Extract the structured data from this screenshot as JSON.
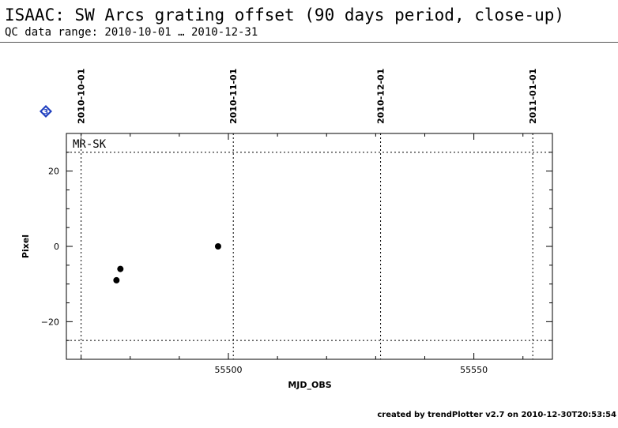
{
  "header": {
    "title": "ISAAC: SW Arcs grating offset (90 days period, close-up)",
    "subtitle": "QC data range: 2010-10-01 … 2010-12-31"
  },
  "badge": {
    "label": "3",
    "color": "#1f3fbf",
    "icon": "diamond-icon"
  },
  "footer": {
    "text": "created by trendPlotter v2.7 on 2010-12-30T20:53:54"
  },
  "chart_data": {
    "type": "scatter",
    "panel_label": "MR-SK",
    "xlabel": "MJD_OBS",
    "ylabel": "Pixel",
    "xlim": [
      55467,
      55566
    ],
    "ylim": [
      -30,
      30
    ],
    "x_ticks": [
      55500,
      55550
    ],
    "y_ticks": [
      -20,
      0,
      20
    ],
    "top_date_axis": [
      {
        "label": "2010-10-01",
        "x": 55470
      },
      {
        "label": "2010-11-01",
        "x": 55501
      },
      {
        "label": "2010-12-01",
        "x": 55531
      },
      {
        "label": "2011-01-01",
        "x": 55562
      }
    ],
    "thresholds": [
      25,
      -25
    ],
    "points": [
      {
        "x": 55477.2,
        "y": -9
      },
      {
        "x": 55478.0,
        "y": -6
      },
      {
        "x": 55497.9,
        "y": 0
      }
    ]
  }
}
